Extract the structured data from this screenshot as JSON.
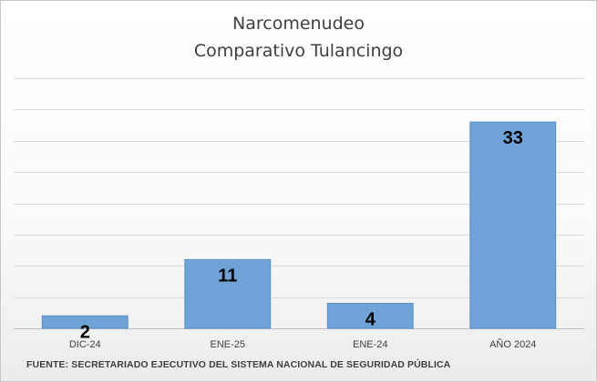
{
  "chart_data": {
    "type": "bar",
    "title": "Narcomenudeo",
    "subtitle": "Comparativo Tulancingo",
    "categories": [
      "DIC-24",
      "ENE-25",
      "ENE-24",
      "AÑO 2024"
    ],
    "values": [
      2,
      11,
      4,
      33
    ],
    "ylim": [
      0,
      40
    ],
    "grid": true,
    "bar_color": "#6fa3d8",
    "bar_edge_color": "#5b8fc8"
  },
  "source_note": "FUENTE: SECRETARIADO EJECUTIVO DEL SISTEMA NACIONAL DE SEGURIDAD PÚBLICA"
}
